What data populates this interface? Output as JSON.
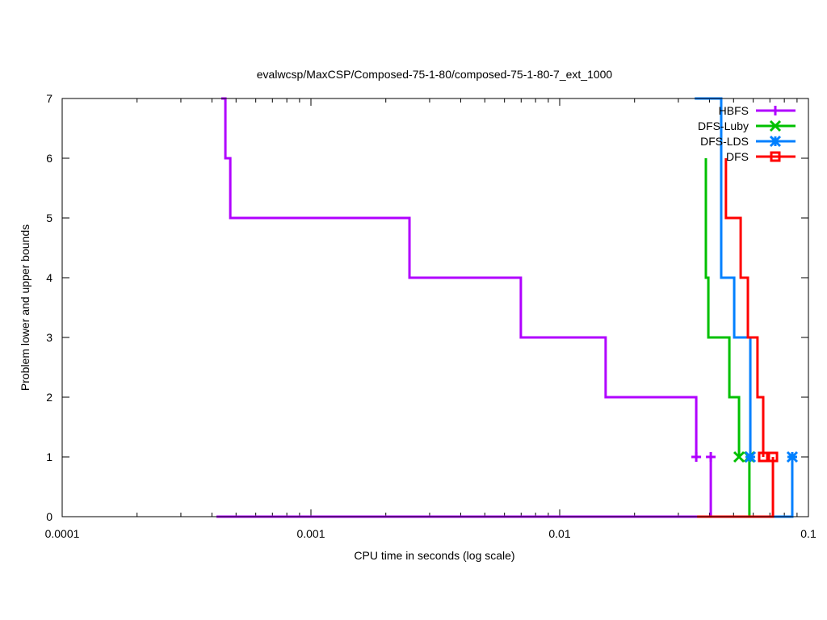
{
  "chart_data": {
    "type": "line",
    "title": "evalwcsp/MaxCSP/Composed-75-1-80/composed-75-1-80-7_ext_1000",
    "xlabel": "CPU time in seconds (log scale)",
    "ylabel": "Problem lower and upper bounds",
    "xscale": "log",
    "xlim": [
      0.0001,
      0.1
    ],
    "ylim": [
      0,
      7
    ],
    "xticks": [
      {
        "v": 0.0001,
        "label": "0.0001"
      },
      {
        "v": 0.001,
        "label": "0.001"
      },
      {
        "v": 0.01,
        "label": "0.01"
      },
      {
        "v": 0.1,
        "label": "0.1"
      }
    ],
    "yticks": [
      0,
      1,
      2,
      3,
      4,
      5,
      6,
      7
    ],
    "legend_position": "top-right",
    "series": [
      {
        "name": "HBFS",
        "color": "#b000ff",
        "marker": "plus",
        "upper": [
          [
            0.000436,
            7
          ],
          [
            0.000453,
            7
          ],
          [
            0.000453,
            6
          ],
          [
            0.000474,
            6
          ],
          [
            0.000474,
            5
          ],
          [
            0.00249,
            5
          ],
          [
            0.00249,
            4
          ],
          [
            0.00698,
            4
          ],
          [
            0.00698,
            3
          ],
          [
            0.0153,
            3
          ],
          [
            0.0153,
            2
          ],
          [
            0.0354,
            2
          ],
          [
            0.0354,
            1
          ]
        ],
        "lower": [
          [
            0.000417,
            0
          ],
          [
            0.0405,
            0
          ],
          [
            0.0405,
            1
          ]
        ],
        "markers": [
          [
            0.0354,
            1
          ],
          [
            0.0405,
            1
          ]
        ]
      },
      {
        "name": "DFS-Luby",
        "color": "#00c000",
        "marker": "x",
        "upper": [
          [
            0.0387,
            6
          ],
          [
            0.0387,
            4
          ],
          [
            0.0396,
            4
          ],
          [
            0.0396,
            3
          ],
          [
            0.0481,
            3
          ],
          [
            0.0481,
            2
          ],
          [
            0.0526,
            2
          ],
          [
            0.0526,
            1
          ]
        ],
        "lower": [
          [
            0.0579,
            0
          ],
          [
            0.0579,
            1
          ]
        ],
        "markers": [
          [
            0.0526,
            1
          ],
          [
            0.0579,
            1
          ]
        ]
      },
      {
        "name": "DFS-LDS",
        "color": "#0080ff",
        "marker": "star",
        "upper": [
          [
            0.0349,
            7
          ],
          [
            0.0446,
            7
          ],
          [
            0.0446,
            4
          ],
          [
            0.0503,
            4
          ],
          [
            0.0503,
            3
          ],
          [
            0.0584,
            3
          ],
          [
            0.0584,
            1
          ]
        ],
        "lower": [
          [
            0.072,
            0
          ],
          [
            0.0861,
            0
          ],
          [
            0.0861,
            1
          ]
        ],
        "markers": [
          [
            0.0584,
            1
          ],
          [
            0.0861,
            1
          ]
        ]
      },
      {
        "name": "DFS",
        "color": "#ff0000",
        "marker": "box",
        "upper": [
          [
            0.0466,
            6
          ],
          [
            0.0466,
            5
          ],
          [
            0.0534,
            5
          ],
          [
            0.0534,
            4
          ],
          [
            0.0571,
            4
          ],
          [
            0.0571,
            3
          ],
          [
            0.0624,
            3
          ],
          [
            0.0624,
            2
          ],
          [
            0.0658,
            2
          ],
          [
            0.0658,
            1
          ]
        ],
        "lower": [
          [
            0.0357,
            0
          ],
          [
            0.072,
            0
          ],
          [
            0.072,
            1
          ]
        ],
        "markers": [
          [
            0.0658,
            1
          ],
          [
            0.072,
            1
          ]
        ]
      }
    ]
  }
}
